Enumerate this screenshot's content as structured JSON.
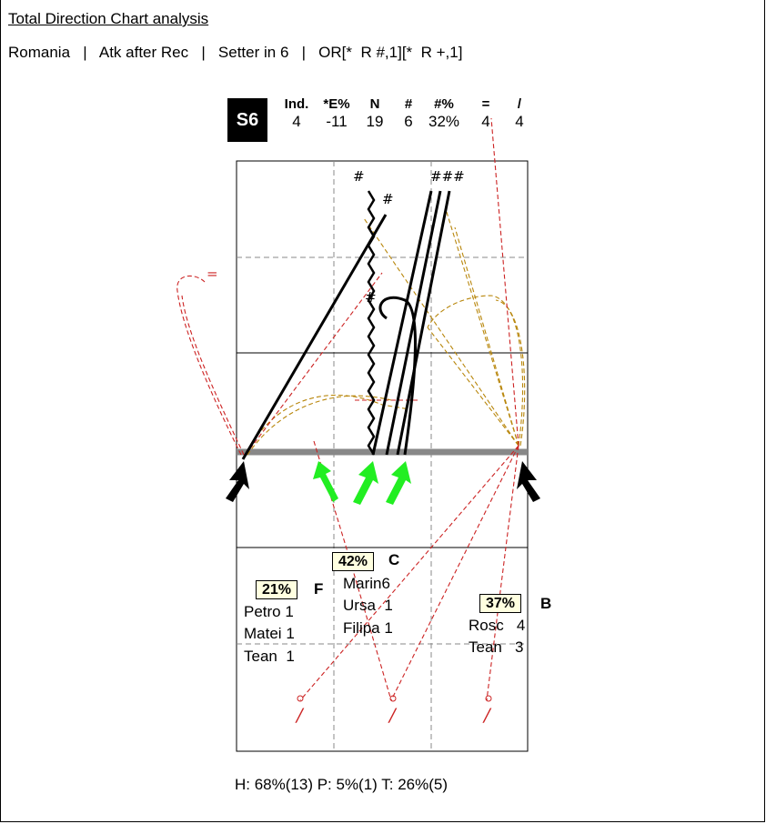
{
  "header": {
    "title": "Total Direction Chart analysis",
    "filters": [
      "Romania",
      "Atk after Rec",
      "Setter in 6",
      "OR[*  R #,1][*  R +,1]"
    ],
    "separator": "|"
  },
  "rotation_badge": "S6",
  "stats": [
    {
      "label": "Ind.",
      "value": "4"
    },
    {
      "label": "*E%",
      "value": "-11"
    },
    {
      "label": "N",
      "value": "19"
    },
    {
      "label": "#",
      "value": "6"
    },
    {
      "label": "#%",
      "value": "32%"
    },
    {
      "label": "=",
      "value": "4"
    },
    {
      "label": "/",
      "value": "4"
    }
  ],
  "zones": {
    "C": {
      "pct": "42%",
      "letter": "C",
      "players": [
        {
          "name": "Marin",
          "count": "6"
        },
        {
          "name": "Ursa",
          "count": "1"
        },
        {
          "name": "Filipa",
          "count": "1"
        }
      ]
    },
    "F": {
      "pct": "21%",
      "letter": "F",
      "players": [
        {
          "name": "Petro",
          "count": "1"
        },
        {
          "name": "Matei",
          "count": "1"
        },
        {
          "name": "Tean",
          "count": "1"
        }
      ]
    },
    "B": {
      "pct": "37%",
      "letter": "B",
      "players": [
        {
          "name": "Rosc",
          "count": "4"
        },
        {
          "name": "Tean",
          "count": "3"
        }
      ]
    }
  },
  "symbols": {
    "hash": "#",
    "triple_hash": "###",
    "equals": "=",
    "slash": "/"
  },
  "footer": "H: 68%(13)  P: 5%(1)  T: 26%(5)",
  "colors": {
    "kill": "#000000",
    "error": "#cc2222",
    "other": "#b8860b",
    "arrow_green": "#22ee22",
    "net": "#888888"
  }
}
